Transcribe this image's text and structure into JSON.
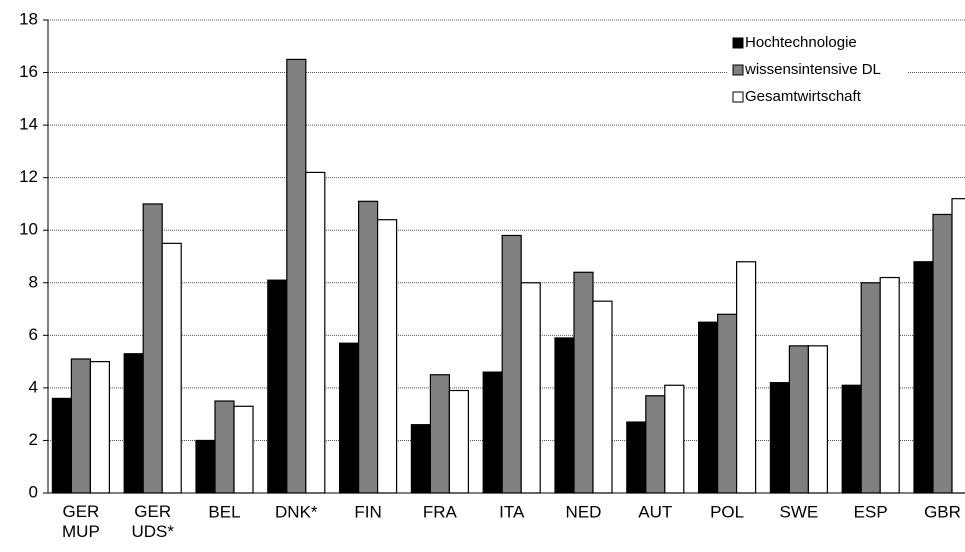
{
  "chart_data": {
    "type": "bar",
    "categories": [
      "GER MUP",
      "GER UDS*",
      "BEL",
      "DNK*",
      "FIN",
      "FRA",
      "ITA",
      "NED",
      "AUT",
      "POL",
      "SWE",
      "ESP",
      "GBR"
    ],
    "series": [
      {
        "name": "Hochtechnologie",
        "color": "#000000",
        "values": [
          3.6,
          5.3,
          2.0,
          8.1,
          5.7,
          2.6,
          4.6,
          5.9,
          2.7,
          6.5,
          4.2,
          4.1,
          8.8
        ]
      },
      {
        "name": "wissensintensive DL",
        "color": "#808080",
        "values": [
          5.1,
          11.0,
          3.5,
          16.5,
          11.1,
          4.5,
          9.8,
          8.4,
          3.7,
          6.8,
          5.6,
          8.0,
          10.6
        ]
      },
      {
        "name": "Gesamtwirtschaft",
        "color": "#ffffff",
        "values": [
          5.0,
          9.5,
          3.3,
          12.2,
          10.4,
          3.9,
          8.0,
          7.3,
          4.1,
          8.8,
          5.6,
          8.2,
          11.2
        ]
      }
    ],
    "ylim": [
      0,
      18
    ],
    "yticks": [
      0,
      2,
      4,
      6,
      8,
      10,
      12,
      14,
      16,
      18
    ],
    "grid": true,
    "legend": "top-right"
  }
}
